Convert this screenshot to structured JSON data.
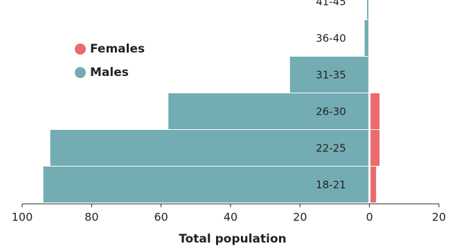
{
  "chart_data": {
    "type": "pyramid",
    "x_label": "Total population",
    "categories": [
      "18-21",
      "22-25",
      "26-30",
      "31-35",
      "36-40",
      "41-45"
    ],
    "series": [
      {
        "name": "Females",
        "color": "#ea6b6b",
        "values": [
          2,
          3,
          3,
          0,
          0,
          0
        ]
      },
      {
        "name": "Males",
        "color": "#73adb3",
        "values": [
          -94,
          -92,
          -58,
          -23,
          -1.5,
          -0.8
        ]
      }
    ],
    "xlim": [
      -100,
      20
    ],
    "xticks": [
      {
        "value": -100,
        "label": "100"
      },
      {
        "value": -80,
        "label": "80"
      },
      {
        "value": -60,
        "label": "60"
      },
      {
        "value": -40,
        "label": "40"
      },
      {
        "value": -20,
        "label": "20"
      },
      0,
      20
    ]
  }
}
